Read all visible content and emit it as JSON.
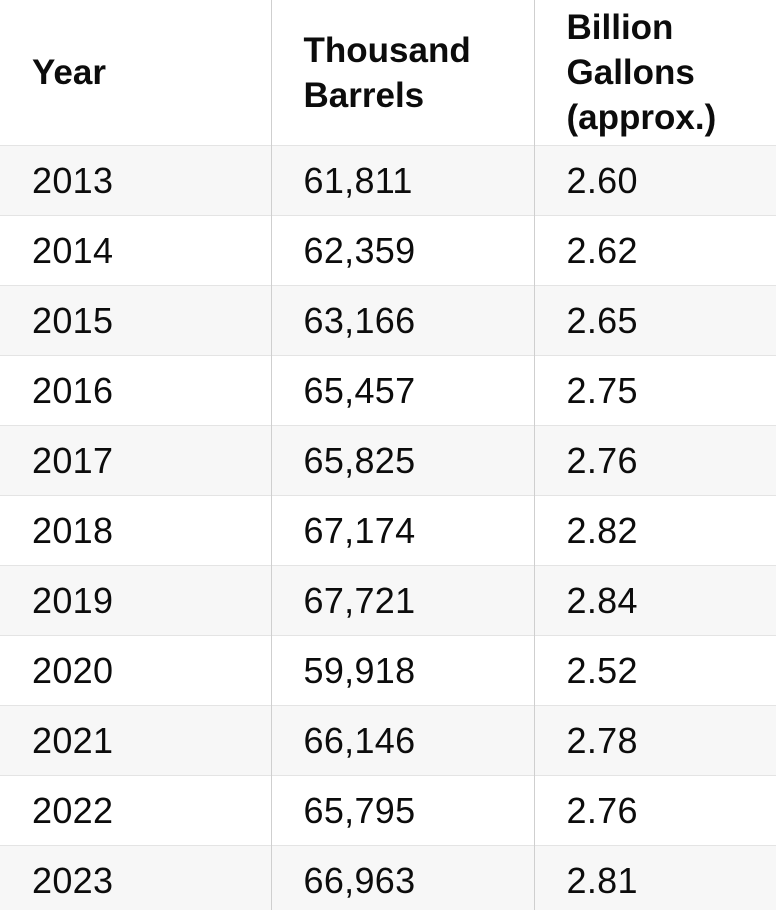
{
  "page": {
    "background": "#ffffff"
  },
  "table": {
    "headers": [
      "Year",
      "Thousand Barrels",
      "Billion Gallons (approx.)"
    ],
    "rows": [
      {
        "year": "2013",
        "thousand_barrels": "61,811",
        "billion_gallons": "2.60"
      },
      {
        "year": "2014",
        "thousand_barrels": "62,359",
        "billion_gallons": "2.62"
      },
      {
        "year": "2015",
        "thousand_barrels": "63,166",
        "billion_gallons": "2.65"
      },
      {
        "year": "2016",
        "thousand_barrels": "65,457",
        "billion_gallons": "2.75"
      },
      {
        "year": "2017",
        "thousand_barrels": "65,825",
        "billion_gallons": "2.76"
      },
      {
        "year": "2018",
        "thousand_barrels": "67,174",
        "billion_gallons": "2.82"
      },
      {
        "year": "2019",
        "thousand_barrels": "67,721",
        "billion_gallons": "2.84"
      },
      {
        "year": "2020",
        "thousand_barrels": "59,918",
        "billion_gallons": "2.52"
      },
      {
        "year": "2021",
        "thousand_barrels": "66,146",
        "billion_gallons": "2.78"
      },
      {
        "year": "2022",
        "thousand_barrels": "65,795",
        "billion_gallons": "2.76"
      },
      {
        "year": "2023",
        "thousand_barrels": "66,963",
        "billion_gallons": "2.81"
      }
    ]
  },
  "colors": {
    "text": "#0c0c0c",
    "row_stripe": "#f7f7f7",
    "row_plain": "#ffffff",
    "vertical_divider": "#cfcfcf",
    "horizontal_divider": "#e4e4e4"
  },
  "chart_data": {
    "type": "table",
    "title": "",
    "columns": [
      "Year",
      "Thousand Barrels",
      "Billion Gallons (approx.)"
    ],
    "categories": [
      2013,
      2014,
      2015,
      2016,
      2017,
      2018,
      2019,
      2020,
      2021,
      2022,
      2023
    ],
    "series": [
      {
        "name": "Thousand Barrels",
        "values": [
          61811,
          62359,
          63166,
          65457,
          65825,
          67174,
          67721,
          59918,
          66146,
          65795,
          66963
        ]
      },
      {
        "name": "Billion Gallons (approx.)",
        "values": [
          2.6,
          2.62,
          2.65,
          2.75,
          2.76,
          2.82,
          2.84,
          2.52,
          2.78,
          2.76,
          2.81
        ]
      }
    ],
    "layout_hints": {
      "striped_rows": true,
      "grid": "column-and-row-dividers",
      "legend": "none"
    }
  }
}
